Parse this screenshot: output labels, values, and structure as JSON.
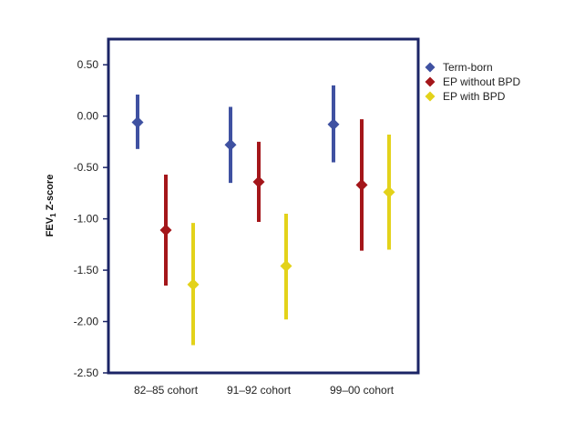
{
  "chart_data": {
    "type": "scatter",
    "subtype": "point-with-error-bars",
    "ylabel_main": "FEV",
    "ylabel_sub": "1",
    "ylabel_rest": " Z-score",
    "ylim": [
      -2.5,
      0.75
    ],
    "yticks": [
      0.5,
      0.0,
      -0.5,
      -1.0,
      -1.5,
      -2.0,
      -2.5
    ],
    "ytick_labels": [
      "0.50",
      "0.00",
      "-0.50",
      "-1.00",
      "-1.50",
      "-2.00",
      "-2.50"
    ],
    "categories": [
      "82–85 cohort",
      "91–92 cohort",
      "99–00 cohort"
    ],
    "grid": false,
    "legend_position": "right",
    "series": [
      {
        "name": "Term-born",
        "color": "#3F51A1",
        "values": [
          -0.06,
          -0.28,
          -0.08
        ],
        "lower": [
          -0.32,
          -0.65,
          -0.45
        ],
        "upper": [
          0.21,
          0.09,
          0.3
        ]
      },
      {
        "name": "EP without BPD",
        "color": "#A4161A",
        "values": [
          -1.11,
          -0.64,
          -0.67
        ],
        "lower": [
          -1.65,
          -1.03,
          -1.31
        ],
        "upper": [
          -0.57,
          -0.25,
          -0.03
        ]
      },
      {
        "name": "EP with BPD",
        "color": "#E3D21A",
        "values": [
          -1.64,
          -1.46,
          -0.74
        ],
        "lower": [
          -2.23,
          -1.98,
          -1.3
        ],
        "upper": [
          -1.04,
          -0.95,
          -0.18
        ]
      }
    ]
  }
}
